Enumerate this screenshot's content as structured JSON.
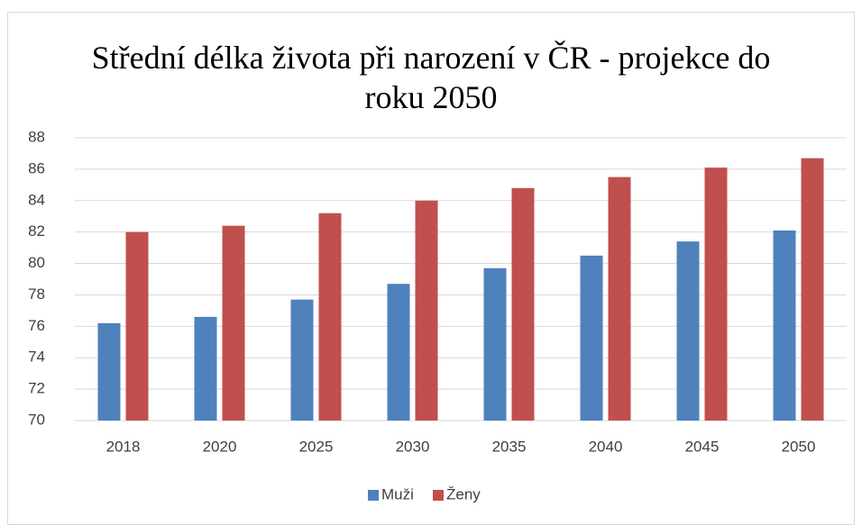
{
  "chart_data": {
    "type": "bar",
    "title": "Střední délka života při narození v ČR - projekce do roku 2050",
    "categories": [
      "2018",
      "2020",
      "2025",
      "2030",
      "2035",
      "2040",
      "2045",
      "2050"
    ],
    "series": [
      {
        "name": "Muži",
        "color": "#4f81bd",
        "values": [
          76.2,
          76.6,
          77.7,
          78.7,
          79.7,
          80.5,
          81.4,
          82.1
        ]
      },
      {
        "name": "Ženy",
        "color": "#c0504d",
        "values": [
          82.0,
          82.4,
          83.2,
          84.0,
          84.8,
          85.5,
          86.1,
          86.7
        ]
      }
    ],
    "ylim": [
      70,
      88
    ],
    "yticks": [
      70,
      72,
      74,
      76,
      78,
      80,
      82,
      84,
      86,
      88
    ],
    "grid": true,
    "legend": "bottom"
  }
}
